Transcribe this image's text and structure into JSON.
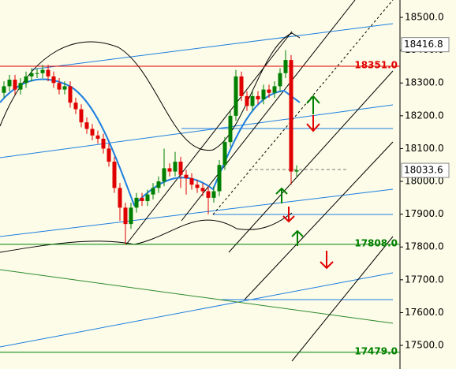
{
  "chart_data": {
    "type": "candlestick",
    "open": [
      18270,
      18290,
      18310,
      18280,
      18300,
      18320,
      18330,
      18330,
      18340,
      18320,
      18300,
      18280,
      18290,
      18240,
      18220,
      18180,
      18160,
      18140,
      18130,
      18100,
      18060,
      17980,
      17920,
      17870,
      17920,
      17950,
      17940,
      17960,
      17980,
      18000,
      18040,
      18030,
      18060,
      18020,
      18010,
      17990,
      17980,
      17970,
      17950,
      17970,
      18050,
      18120,
      18200,
      18320,
      18260,
      18230,
      18260,
      18250,
      18280,
      18270,
      18290,
      18330,
      18370,
      18030
    ],
    "close": [
      18290,
      18310,
      18280,
      18300,
      18320,
      18330,
      18330,
      18340,
      18320,
      18300,
      18280,
      18290,
      18240,
      18220,
      18180,
      18160,
      18140,
      18130,
      18100,
      18060,
      17980,
      17920,
      17870,
      17920,
      17950,
      17940,
      17960,
      17980,
      18000,
      18040,
      18030,
      18060,
      18020,
      18010,
      17990,
      17980,
      17970,
      17950,
      17970,
      18050,
      18120,
      18200,
      18320,
      18260,
      18230,
      18260,
      18250,
      18280,
      18270,
      18290,
      18330,
      18370,
      18030,
      18034
    ],
    "high": [
      18305,
      18325,
      18325,
      18315,
      18335,
      18345,
      18345,
      18355,
      18355,
      18335,
      18315,
      18305,
      18305,
      18255,
      18235,
      18195,
      18175,
      18155,
      18145,
      18115,
      18075,
      17995,
      17935,
      17935,
      17965,
      17965,
      17975,
      17995,
      18015,
      18100,
      18055,
      18090,
      18075,
      18035,
      18025,
      18005,
      17995,
      17985,
      17985,
      18065,
      18135,
      18215,
      18340,
      18335,
      18275,
      18275,
      18275,
      18295,
      18295,
      18305,
      18345,
      18400,
      18385,
      18049
    ],
    "low": [
      18255,
      18275,
      18265,
      18265,
      18285,
      18305,
      18315,
      18315,
      18305,
      18285,
      18265,
      18265,
      18225,
      18205,
      18165,
      18145,
      18125,
      18115,
      18085,
      18045,
      17965,
      17880,
      17808,
      17855,
      17905,
      17925,
      17925,
      17945,
      17965,
      17985,
      18015,
      18015,
      17980,
      17960,
      17975,
      17965,
      17955,
      17900,
      17935,
      17955,
      18035,
      18105,
      18185,
      18245,
      18215,
      18215,
      18235,
      18235,
      18255,
      18255,
      18275,
      18315,
      17990,
      18015
    ],
    "up_color": "#008000",
    "down_color": "#e00000",
    "ylim": [
      17428,
      18553
    ],
    "yticks": [
      {
        "value": 18500,
        "label": "18500.0"
      },
      {
        "value": 18400,
        "label": "18400.0"
      },
      {
        "value": 18300,
        "label": "18300.0"
      },
      {
        "value": 18200,
        "label": "18200.0"
      },
      {
        "value": 18100,
        "label": "18100.0"
      },
      {
        "value": 18000,
        "label": "18000.0"
      },
      {
        "value": 17900,
        "label": "17900.0"
      },
      {
        "value": 17800,
        "label": "17800.0"
      },
      {
        "value": 17700,
        "label": "17700.0"
      },
      {
        "value": 17600,
        "label": "17600.0"
      },
      {
        "value": 17500,
        "label": "17500.0"
      }
    ],
    "levels": [
      {
        "value": 18351,
        "label": "18351.0",
        "color": "#e00000"
      },
      {
        "value": 17808,
        "label": "17808.0",
        "color": "#008000"
      },
      {
        "value": 17479,
        "label": "17479.0",
        "color": "#008000"
      }
    ],
    "markers": [
      {
        "value": 18416.8,
        "label": "18416.8"
      },
      {
        "value": 18033.6,
        "label": "18033.6"
      }
    ]
  }
}
